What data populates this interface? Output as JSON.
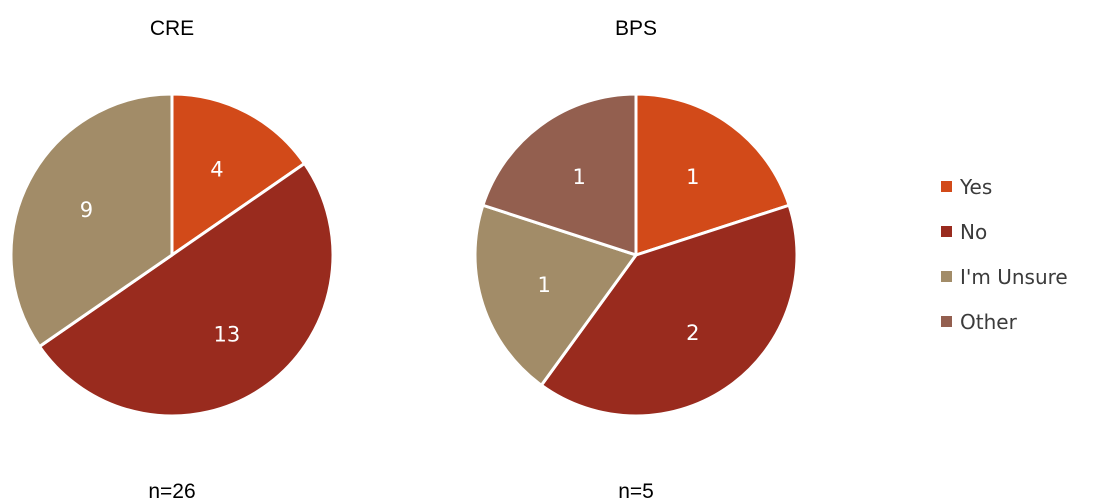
{
  "chart_data": [
    {
      "type": "pie",
      "title": "CRE",
      "footer": "n=26",
      "categories": [
        "Yes",
        "No",
        "I'm Unsure"
      ],
      "values": [
        4,
        13,
        9
      ]
    },
    {
      "type": "pie",
      "title": "BPS",
      "footer": "n=5",
      "categories": [
        "Yes",
        "No",
        "I'm Unsure",
        "Other"
      ],
      "values": [
        1,
        2,
        1,
        1
      ]
    }
  ],
  "legend": [
    {
      "label": "Yes",
      "color": "#d24a19"
    },
    {
      "label": "No",
      "color": "#992b1e"
    },
    {
      "label": "I'm Unsure",
      "color": "#a28c68"
    },
    {
      "label": "Other",
      "color": "#935f4f"
    }
  ]
}
